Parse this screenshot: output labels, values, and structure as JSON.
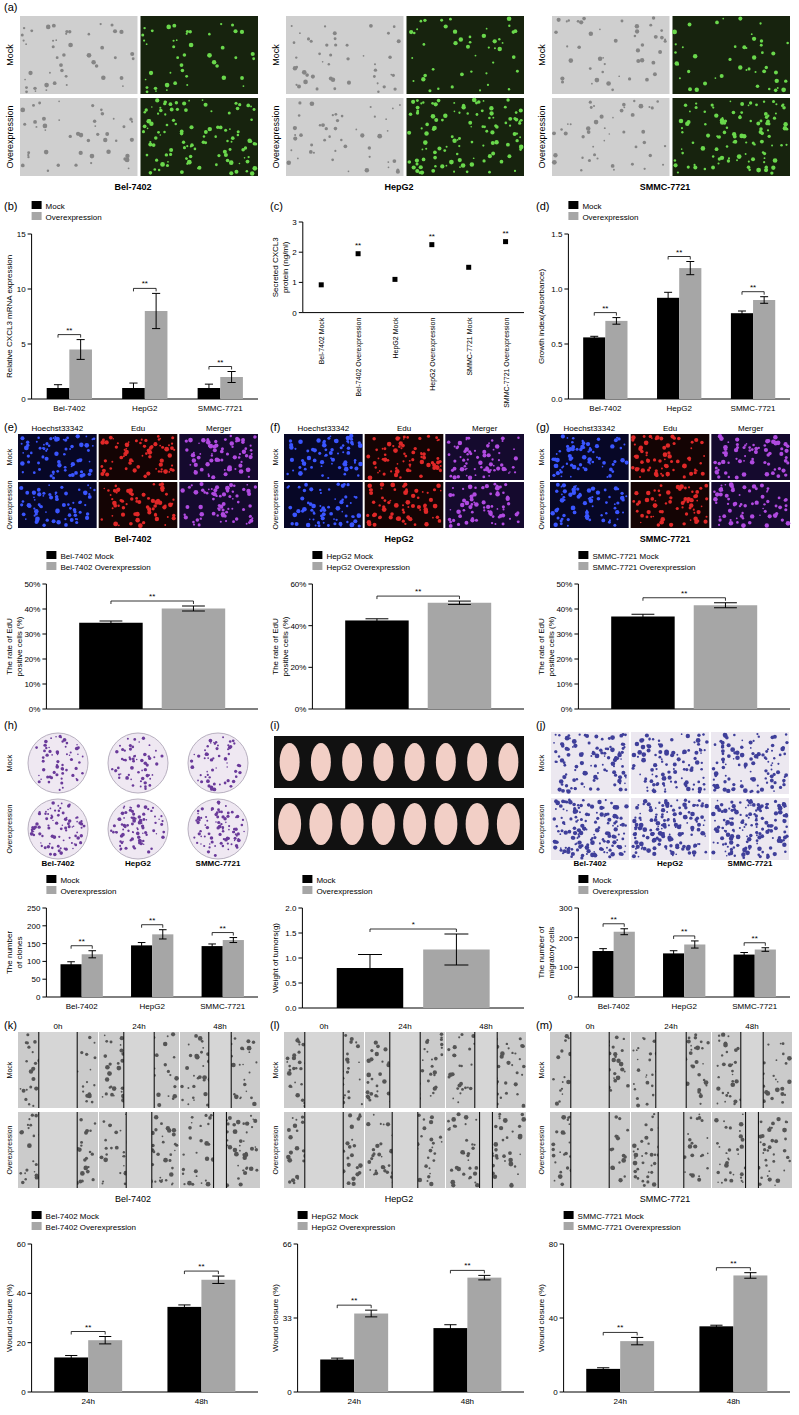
{
  "figure_panels": [
    {
      "type": "gfp",
      "panel": "(a)",
      "groups": [
        {
          "title": "Bel-7402",
          "rows": [
            "Mock",
            "Overexpression"
          ]
        },
        {
          "title": "HepG2",
          "rows": [
            "Mock",
            "Overexpression"
          ]
        },
        {
          "title": "SMMC-7721",
          "rows": [
            "Mock",
            "Overexpression"
          ]
        }
      ]
    },
    {
      "type": "edu",
      "panel": "(e)",
      "title": "Bel-7402",
      "rows": [
        "Mock",
        "Overexpression"
      ],
      "columns": [
        "Hoechst33342",
        "Edu",
        "Merger"
      ]
    },
    {
      "type": "edu",
      "panel": "(f)",
      "title": "HepG2",
      "rows": [
        "Mock",
        "Overexpression"
      ],
      "columns": [
        "Hoechst33342",
        "Edu",
        "Merger"
      ]
    },
    {
      "type": "edu",
      "panel": "(g)",
      "title": "SMMC-7721",
      "rows": [
        "Mock",
        "Overexpression"
      ],
      "columns": [
        "Hoechst33342",
        "Edu",
        "Merger"
      ]
    },
    {
      "type": "dish",
      "panel": "(h)",
      "rows": [
        "Mock",
        "Overexpression"
      ],
      "columns": [
        "Bel-7402",
        "HepG2",
        "SMMC-7721"
      ]
    },
    {
      "type": "tumor",
      "panel": "(i)"
    },
    {
      "type": "transwell",
      "panel": "(j)",
      "rows": [
        "Mock",
        "Overexpression"
      ],
      "columns": [
        "Bel-7402",
        "HepG2",
        "SMMC-7721"
      ]
    },
    {
      "type": "wound",
      "panel": "(k)",
      "title": "Bel-7402",
      "rows": [
        "Mock",
        "Overexpression"
      ],
      "columns": [
        "0h",
        "24h",
        "48h"
      ]
    },
    {
      "type": "wound",
      "panel": "(l)",
      "title": "HepG2",
      "rows": [
        "Mock",
        "Overexpression"
      ],
      "columns": [
        "0h",
        "24h",
        "48h"
      ]
    },
    {
      "type": "wound",
      "panel": "(m)",
      "title": "SMMC-7721",
      "rows": [
        "Mock",
        "Overexpression"
      ],
      "columns": [
        "0h",
        "24h",
        "48h"
      ]
    }
  ],
  "chart_data": [
    {
      "panel": "(b)",
      "type": "bar",
      "y_label": "Relative CXCL3 mRNA expression",
      "categories": [
        "Bel-7402",
        "HepG2",
        "SMMC-7721"
      ],
      "series": [
        {
          "name": "Mock",
          "color": "#000000",
          "values": [
            1,
            1,
            1
          ],
          "errors": [
            0.3,
            0.45,
            0.35
          ]
        },
        {
          "name": "Overexpression",
          "color": "#a6a6a6",
          "values": [
            4.5,
            8,
            2
          ],
          "errors": [
            0.9,
            1.6,
            0.5
          ]
        }
      ],
      "annotations": [
        "**",
        "**",
        "**"
      ],
      "ylim": [
        0,
        15
      ],
      "yticks": [
        0,
        5,
        10,
        15
      ],
      "legend": "top"
    },
    {
      "panel": "(c)",
      "type": "dot",
      "y_label": "Secreted CXCL3 protein (ng/ml)",
      "categories": [
        "Bel-7402 Mock",
        "Bel-7402 Overexpression",
        "HepG2 Mock",
        "HepG2 Overexpression",
        "SMMC-7721 Mock",
        "SMMC-7721 Overexpression"
      ],
      "values": [
        0.92,
        1.95,
        1.1,
        2.25,
        1.5,
        2.35
      ],
      "errors": [
        0.02,
        0.03,
        0.02,
        0.03,
        0.02,
        0.03
      ],
      "color": "#000000",
      "marker": "square",
      "annotations": [
        null,
        "**",
        null,
        "**",
        null,
        "**"
      ],
      "ylim": [
        0,
        3
      ],
      "yticks": [
        0,
        1,
        2,
        3
      ]
    },
    {
      "panel": "(d)",
      "type": "bar",
      "y_label": "Growth index(Absorbance)",
      "categories": [
        "Bel-7402",
        "HepG2",
        "SMMC-7721"
      ],
      "series": [
        {
          "name": "Mock",
          "color": "#000000",
          "values": [
            0.56,
            0.92,
            0.78
          ],
          "errors": [
            0.01,
            0.05,
            0.02
          ]
        },
        {
          "name": "Overexpression",
          "color": "#a6a6a6",
          "values": [
            0.71,
            1.19,
            0.9
          ],
          "errors": [
            0.03,
            0.06,
            0.03
          ]
        }
      ],
      "annotations": [
        "**",
        "**",
        "**"
      ],
      "ylim": [
        0,
        1.5
      ],
      "yticks": [
        {
          "value": 0,
          "label": "0.0"
        },
        {
          "value": 0.5,
          "label": "0.5"
        },
        {
          "value": 1,
          "label": "1.0"
        },
        {
          "value": 1.5,
          "label": "1.5"
        }
      ],
      "legend": "top"
    },
    {
      "type": "bar",
      "y_label": "The rate of EdU positive cells (%)",
      "categories": [
        null
      ],
      "series": [
        {
          "name": "Bel-7402 Mock",
          "color": "#000000",
          "values": [
            34.5
          ],
          "errors": [
            0.7
          ]
        },
        {
          "name": "Bel-7402 Overexpression",
          "color": "#a6a6a6",
          "values": [
            40.2
          ],
          "errors": [
            1.0
          ]
        }
      ],
      "annotations": [
        "**"
      ],
      "ylim": [
        0,
        50
      ],
      "yticks": [
        {
          "value": 0,
          "label": "0%"
        },
        {
          "value": 10,
          "label": "10%"
        },
        {
          "value": 20,
          "label": "20%"
        },
        {
          "value": 30,
          "label": "30%"
        },
        {
          "value": 40,
          "label": "40%"
        },
        {
          "value": 50,
          "label": "50%"
        }
      ],
      "legend": "top"
    },
    {
      "type": "bar",
      "y_label": "The rate of EdU positive cells (%)",
      "categories": [
        null
      ],
      "series": [
        {
          "name": "HepG2 Mock",
          "color": "#000000",
          "values": [
            42.5
          ],
          "errors": [
            0.8
          ]
        },
        {
          "name": "HepG2 Overexpression",
          "color": "#a6a6a6",
          "values": [
            51
          ],
          "errors": [
            0.8
          ]
        }
      ],
      "annotations": [
        "**"
      ],
      "ylim": [
        0,
        60
      ],
      "yticks": [
        {
          "value": 0,
          "label": "0%"
        },
        {
          "value": 20,
          "label": "20%"
        },
        {
          "value": 40,
          "label": "40%"
        },
        {
          "value": 60,
          "label": "60%"
        }
      ],
      "legend": "top"
    },
    {
      "type": "bar",
      "y_label": "The rate of EdU positive cells (%)",
      "categories": [
        null
      ],
      "series": [
        {
          "name": "SMMC-7721 Mock",
          "color": "#000000",
          "values": [
            37
          ],
          "errors": [
            0.9
          ]
        },
        {
          "name": "SMMC-7721 Overexpression",
          "color": "#a6a6a6",
          "values": [
            41.5
          ],
          "errors": [
            1.0
          ]
        }
      ],
      "annotations": [
        "**"
      ],
      "ylim": [
        0,
        50
      ],
      "yticks": [
        {
          "value": 0,
          "label": "0%"
        },
        {
          "value": 10,
          "label": "10%"
        },
        {
          "value": 20,
          "label": "20%"
        },
        {
          "value": 30,
          "label": "30%"
        },
        {
          "value": 40,
          "label": "40%"
        },
        {
          "value": 50,
          "label": "50%"
        }
      ],
      "legend": "top"
    },
    {
      "type": "bar",
      "y_label": "The number of clones",
      "categories": [
        "Bel-7402",
        "HepG2",
        "SMMC-7721"
      ],
      "series": [
        {
          "name": "Mock",
          "color": "#000000",
          "values": [
            92,
            145,
            143
          ],
          "errors": [
            7,
            8,
            6
          ]
        },
        {
          "name": "Overexpression",
          "color": "#a6a6a6",
          "values": [
            120,
            176,
            160
          ],
          "errors": [
            10,
            13,
            7
          ]
        }
      ],
      "annotations": [
        "**",
        "**",
        "**"
      ],
      "ylim": [
        0,
        250
      ],
      "yticks": [
        0,
        50,
        100,
        150,
        200,
        250
      ],
      "legend": "top"
    },
    {
      "type": "bar",
      "y_label": "Weight of tumors(g)",
      "categories": [
        null
      ],
      "series": [
        {
          "name": "Mock",
          "color": "#000000",
          "values": [
            0.8
          ],
          "errors": [
            0.27
          ]
        },
        {
          "name": "Overexpression",
          "color": "#a6a6a6",
          "values": [
            1.17
          ],
          "errors": [
            0.31
          ]
        }
      ],
      "annotations": [
        "*"
      ],
      "ylim": [
        0,
        2
      ],
      "yticks": [
        {
          "value": 0,
          "label": "0.0"
        },
        {
          "value": 0.5,
          "label": "0.5"
        },
        {
          "value": 1,
          "label": "1.0"
        },
        {
          "value": 1.5,
          "label": "1.5"
        },
        {
          "value": 2,
          "label": "2.0"
        }
      ],
      "legend": "top"
    },
    {
      "type": "bar",
      "y_label": "The number of migratory cells",
      "categories": [
        "Bel-7402",
        "HepG2",
        "SMMC-7721"
      ],
      "series": [
        {
          "name": "Mock",
          "color": "#000000",
          "values": [
            155,
            147,
            143
          ],
          "errors": [
            8,
            9,
            7
          ]
        },
        {
          "name": "Overexpression",
          "color": "#a6a6a6",
          "values": [
            220,
            177,
            160
          ],
          "errors": [
            10,
            12,
            6
          ]
        }
      ],
      "annotations": [
        "**",
        "**",
        "**"
      ],
      "ylim": [
        0,
        300
      ],
      "yticks": [
        0,
        100,
        200,
        300
      ],
      "legend": "top"
    },
    {
      "type": "bar",
      "y_label": "Wound closure (%)",
      "categories": [
        "24h",
        "48h"
      ],
      "series": [
        {
          "name": "Bel-7402 Mock",
          "color": "#000000",
          "values": [
            14,
            34.5
          ],
          "errors": [
            0.8,
            0.8
          ]
        },
        {
          "name": "Bel-7402 Overexpression",
          "color": "#a6a6a6",
          "values": [
            21,
            45.5
          ],
          "errors": [
            1.5,
            1.5
          ]
        }
      ],
      "annotations": [
        "**",
        "**"
      ],
      "ylim": [
        0,
        60
      ],
      "yticks": [
        0,
        20,
        40,
        60
      ],
      "legend": "top"
    },
    {
      "type": "bar",
      "y_label": "Wound closure (%)",
      "categories": [
        "24h",
        "48h"
      ],
      "series": [
        {
          "name": "HepG2 Mock",
          "color": "#000000",
          "values": [
            14.5,
            28.5
          ],
          "errors": [
            0.6,
            1.5
          ]
        },
        {
          "name": "HepG2 Overexpression",
          "color": "#a6a6a6",
          "values": [
            35,
            51
          ],
          "errors": [
            1.5,
            1.0
          ]
        }
      ],
      "annotations": [
        "**",
        "**"
      ],
      "ylim": [
        0,
        66
      ],
      "yticks": [
        0,
        33,
        66
      ],
      "legend": "top"
    },
    {
      "type": "bar",
      "y_label": "Wound closure (%)",
      "categories": [
        "24h",
        "48h"
      ],
      "series": [
        {
          "name": "SMMC-7721 Mock",
          "color": "#000000",
          "values": [
            12.5,
            35.5
          ],
          "errors": [
            0.6,
            0.6
          ]
        },
        {
          "name": "SMMC-7721 Overexpression",
          "color": "#a6a6a6",
          "values": [
            27.5,
            63
          ],
          "errors": [
            2,
            1.5
          ]
        }
      ],
      "annotations": [
        "**",
        "**"
      ],
      "ylim": [
        0,
        80
      ],
      "yticks": [
        0,
        40,
        80
      ],
      "legend": "top"
    }
  ]
}
